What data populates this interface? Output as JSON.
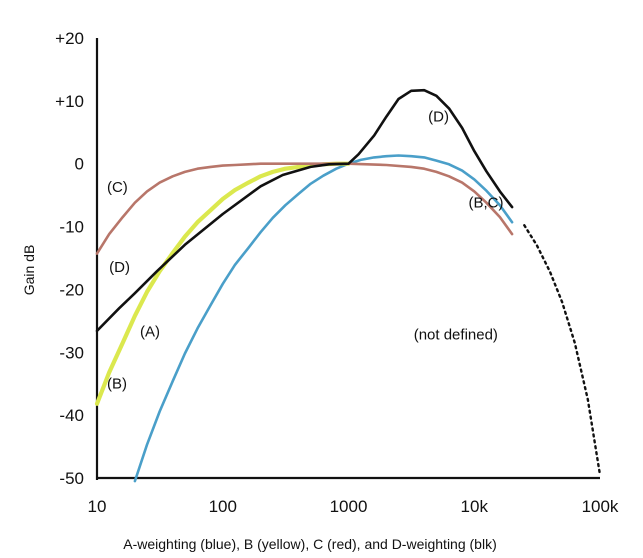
{
  "chart_data": {
    "type": "line",
    "x_scale": "log",
    "xlim": [
      10,
      100000
    ],
    "ylim": [
      -50,
      20
    ],
    "ylabel": "Gain dB",
    "xlabel": "A-weighting (blue), B (yellow), C (red), and D-weighting (blk)",
    "grid": false,
    "x_ticks": [
      {
        "value": 10,
        "label": "10"
      },
      {
        "value": 100,
        "label": "100"
      },
      {
        "value": 1000,
        "label": "1000"
      },
      {
        "value": 10000,
        "label": "10k"
      },
      {
        "value": 100000,
        "label": "100k"
      }
    ],
    "y_ticks": [
      {
        "value": 20,
        "label": "+20"
      },
      {
        "value": 10,
        "label": "+10"
      },
      {
        "value": 0,
        "label": "0"
      },
      {
        "value": -10,
        "label": "-10"
      },
      {
        "value": -20,
        "label": "-20"
      },
      {
        "value": -30,
        "label": "-30"
      },
      {
        "value": -40,
        "label": "-40"
      },
      {
        "value": -50,
        "label": "-50"
      }
    ],
    "series": [
      {
        "key": "A",
        "color": "#4a9fc9",
        "style": "solid",
        "x": [
          20,
          25,
          31.5,
          40,
          50,
          63,
          80,
          100,
          125,
          160,
          200,
          250,
          315,
          400,
          500,
          630,
          800,
          1000,
          1250,
          1600,
          2000,
          2500,
          3150,
          4000,
          5000,
          6300,
          8000,
          10000,
          12500,
          16000,
          20000
        ],
        "y": [
          -50.5,
          -44.7,
          -39.4,
          -34.6,
          -30.2,
          -26.2,
          -22.5,
          -19.1,
          -16.1,
          -13.4,
          -10.9,
          -8.6,
          -6.6,
          -4.8,
          -3.2,
          -1.9,
          -0.8,
          0,
          0.6,
          1.0,
          1.2,
          1.3,
          1.2,
          1.0,
          0.5,
          -0.1,
          -1.1,
          -2.5,
          -4.3,
          -6.6,
          -9.3
        ]
      },
      {
        "key": "B",
        "color": "#dbe84e",
        "style": "solid",
        "x": [
          10,
          12.5,
          16,
          20,
          25,
          31.5,
          40,
          50,
          63,
          80,
          100,
          125,
          160,
          200,
          250,
          315,
          400,
          500,
          630,
          800,
          1000
        ],
        "y": [
          -38.2,
          -33.2,
          -28.5,
          -24.2,
          -20.4,
          -17.1,
          -14.2,
          -11.6,
          -9.3,
          -7.4,
          -5.6,
          -4.2,
          -3.0,
          -2.0,
          -1.3,
          -0.8,
          -0.5,
          -0.3,
          -0.1,
          0,
          0
        ]
      },
      {
        "key": "C",
        "color": "#b8766a",
        "style": "solid",
        "x": [
          10,
          12.5,
          16,
          20,
          25,
          31.5,
          40,
          50,
          63,
          80,
          100,
          125,
          160,
          200,
          400,
          1000,
          2000,
          3150,
          4000,
          5000,
          6300,
          8000,
          10000,
          12500,
          16000,
          20000
        ],
        "y": [
          -14.3,
          -11.2,
          -8.5,
          -6.2,
          -4.4,
          -3.0,
          -2.0,
          -1.3,
          -0.8,
          -0.5,
          -0.3,
          -0.2,
          -0.1,
          0,
          0,
          0,
          -0.2,
          -0.5,
          -0.8,
          -1.3,
          -2.0,
          -3.0,
          -4.4,
          -6.2,
          -8.5,
          -11.2
        ]
      },
      {
        "key": "D",
        "color": "#111111",
        "style": "solid",
        "x": [
          10,
          15,
          20,
          30,
          50,
          100,
          200,
          300,
          500,
          700,
          1000,
          1200,
          1600,
          2000,
          2500,
          3150,
          4000,
          5000,
          6300,
          8000,
          10000,
          12500,
          16000,
          20000
        ],
        "y": [
          -26.6,
          -23.0,
          -20.6,
          -17.1,
          -12.9,
          -8.0,
          -3.6,
          -1.8,
          -0.5,
          -0.1,
          0,
          1.5,
          4.5,
          7.5,
          10.3,
          11.6,
          11.7,
          10.8,
          8.8,
          5.7,
          2.0,
          -1.2,
          -4.4,
          -6.9
        ]
      },
      {
        "key": "extrapolated",
        "color": "#111111",
        "style": "dotted",
        "x": [
          25000,
          31500,
          40000,
          50000,
          63000,
          80000,
          100000
        ],
        "y": [
          -9.8,
          -13.0,
          -17.2,
          -22.0,
          -28.5,
          -37.5,
          -49.5
        ]
      }
    ],
    "annotations": [
      {
        "text": "(C)",
        "x": 12,
        "y": -4.5
      },
      {
        "text": "(D)",
        "x": 4300,
        "y": 6.7
      },
      {
        "text": "(B,C)",
        "x": 9000,
        "y": -7.0
      },
      {
        "text": "(D)",
        "x": 12.5,
        "y": -17.2
      },
      {
        "text": "(A)",
        "x": 22,
        "y": -27.5
      },
      {
        "text": "(B)",
        "x": 12,
        "y": -35.8
      },
      {
        "text": "(not defined)",
        "x": 3300,
        "y": -28.0
      }
    ]
  }
}
